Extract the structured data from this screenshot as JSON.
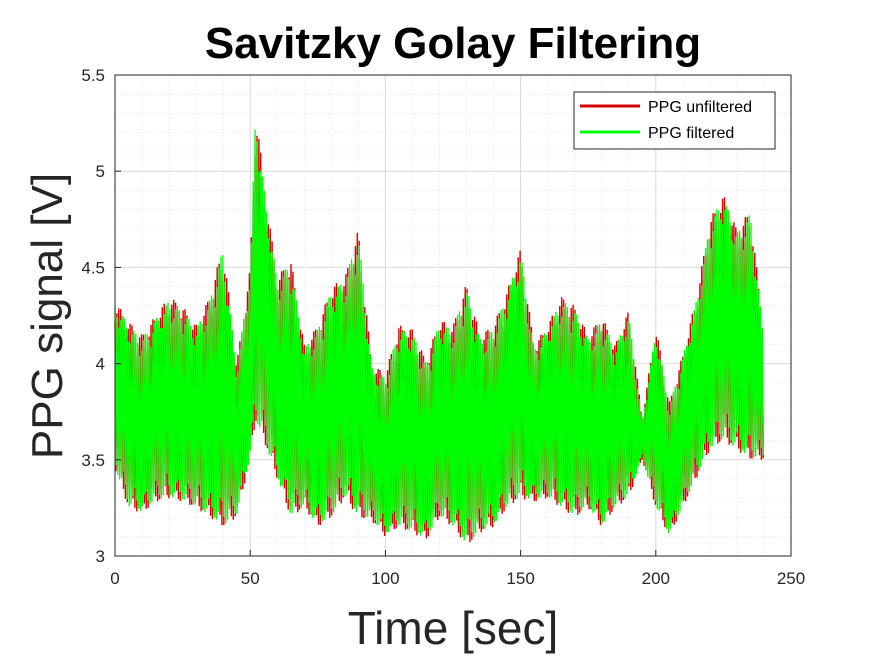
{
  "chart_data": {
    "type": "line",
    "title": "Savitzky Golay Filtering",
    "xlabel": "Time [sec]",
    "ylabel": "PPG signal [V]",
    "xlim": [
      0,
      250
    ],
    "ylim": [
      3,
      5.5
    ],
    "xticks": [
      "0",
      "50",
      "100",
      "150",
      "200",
      "250"
    ],
    "yticks": [
      "3",
      "3.5",
      "4",
      "4.5",
      "5",
      "5.5"
    ],
    "grid": "major-and-minor",
    "legend_position": "top-right",
    "series": [
      {
        "name": "PPG unfiltered",
        "color": "#d40000",
        "x": [
          0,
          5,
          10,
          15,
          20,
          25,
          30,
          35,
          40,
          45,
          50,
          52,
          55,
          60,
          65,
          70,
          75,
          80,
          85,
          90,
          95,
          100,
          105,
          110,
          115,
          120,
          125,
          130,
          135,
          140,
          145,
          150,
          155,
          160,
          165,
          170,
          175,
          180,
          185,
          190,
          195,
          200,
          205,
          210,
          215,
          220,
          225,
          230,
          235,
          240
        ],
        "y_max": [
          4.33,
          4.22,
          4.15,
          4.25,
          4.35,
          4.3,
          4.2,
          4.35,
          4.62,
          4.0,
          4.5,
          5.35,
          4.95,
          4.45,
          4.55,
          4.1,
          4.2,
          4.4,
          4.45,
          4.7,
          4.0,
          3.95,
          4.2,
          4.18,
          4.02,
          4.23,
          4.2,
          4.42,
          4.15,
          4.2,
          4.38,
          4.6,
          4.1,
          4.2,
          4.35,
          4.3,
          4.15,
          4.25,
          4.1,
          4.28,
          3.72,
          4.2,
          3.8,
          4.05,
          4.35,
          4.75,
          4.88,
          4.7,
          4.8,
          4.15
        ],
        "y_min": [
          3.45,
          3.25,
          3.22,
          3.28,
          3.3,
          3.28,
          3.25,
          3.2,
          3.15,
          3.2,
          3.5,
          3.7,
          3.6,
          3.4,
          3.2,
          3.25,
          3.15,
          3.2,
          3.3,
          3.2,
          3.18,
          3.1,
          3.15,
          3.12,
          3.08,
          3.2,
          3.15,
          3.05,
          3.12,
          3.15,
          3.25,
          3.3,
          3.28,
          3.3,
          3.25,
          3.2,
          3.25,
          3.15,
          3.25,
          3.3,
          3.5,
          3.25,
          3.1,
          3.25,
          3.4,
          3.55,
          3.6,
          3.55,
          3.5,
          3.5
        ]
      },
      {
        "name": "PPG filtered",
        "color": "#00ff00",
        "x": [
          0,
          5,
          10,
          15,
          20,
          25,
          30,
          35,
          40,
          45,
          50,
          52,
          55,
          60,
          65,
          70,
          75,
          80,
          85,
          90,
          95,
          100,
          105,
          110,
          115,
          120,
          125,
          130,
          135,
          140,
          145,
          150,
          155,
          160,
          165,
          170,
          175,
          180,
          185,
          190,
          195,
          200,
          205,
          210,
          215,
          220,
          225,
          230,
          235,
          240
        ],
        "y_max": [
          4.32,
          4.2,
          4.13,
          4.23,
          4.33,
          4.28,
          4.18,
          4.33,
          4.6,
          3.98,
          4.48,
          5.33,
          4.93,
          4.43,
          4.53,
          4.08,
          4.18,
          4.38,
          4.43,
          4.68,
          3.98,
          3.93,
          4.18,
          4.16,
          4.0,
          4.21,
          4.18,
          4.4,
          4.13,
          4.18,
          4.36,
          4.58,
          4.08,
          4.18,
          4.33,
          4.28,
          4.13,
          4.23,
          4.08,
          4.26,
          3.7,
          4.18,
          3.78,
          4.03,
          4.33,
          4.73,
          4.87,
          4.68,
          4.78,
          4.13
        ],
        "y_min": [
          3.46,
          3.26,
          3.23,
          3.29,
          3.31,
          3.29,
          3.26,
          3.21,
          3.16,
          3.21,
          3.51,
          3.71,
          3.61,
          3.41,
          3.21,
          3.26,
          3.16,
          3.21,
          3.31,
          3.21,
          3.19,
          3.11,
          3.16,
          3.13,
          3.09,
          3.21,
          3.16,
          3.06,
          3.13,
          3.16,
          3.26,
          3.31,
          3.29,
          3.31,
          3.26,
          3.21,
          3.26,
          3.16,
          3.26,
          3.31,
          3.51,
          3.26,
          3.11,
          3.26,
          3.41,
          3.56,
          3.61,
          3.56,
          3.51,
          3.51
        ]
      }
    ]
  }
}
